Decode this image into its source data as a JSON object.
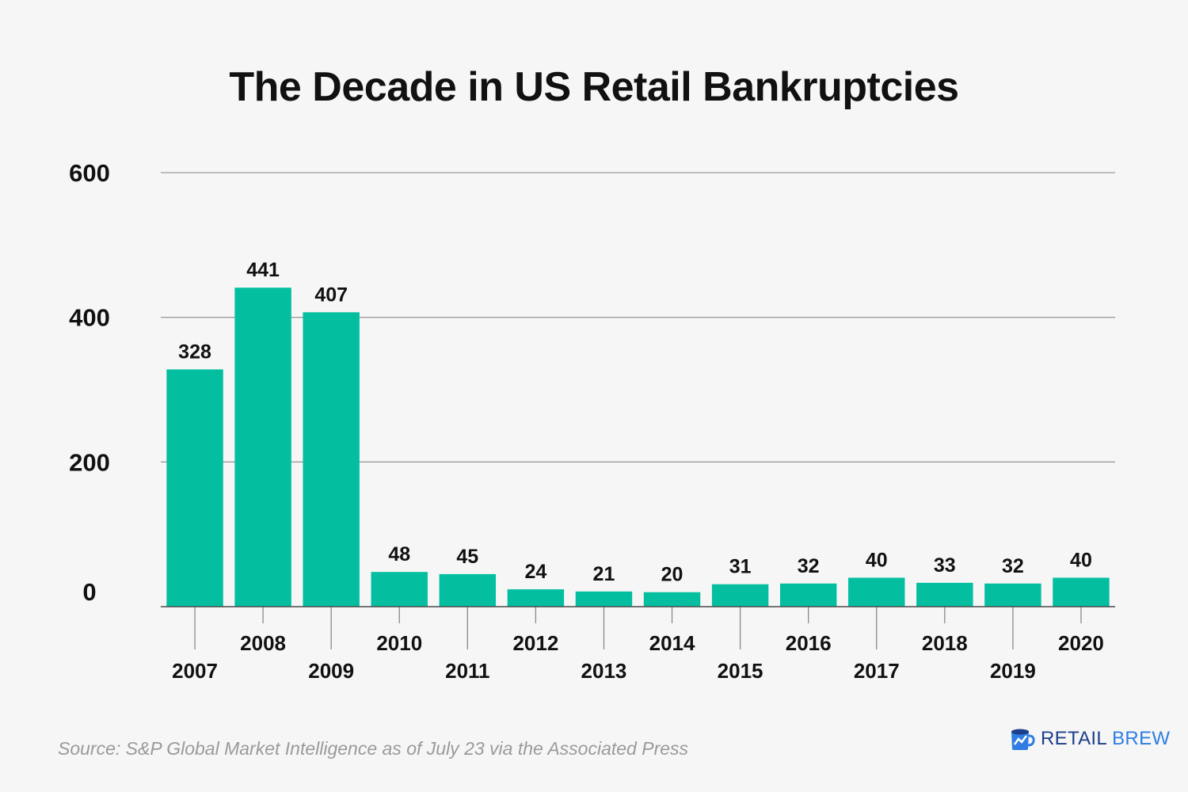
{
  "chart_data": {
    "type": "bar",
    "title": "The Decade in US Retail Bankruptcies",
    "categories": [
      "2007",
      "2008",
      "2009",
      "2010",
      "2011",
      "2012",
      "2013",
      "2014",
      "2015",
      "2016",
      "2017",
      "2018",
      "2019",
      "2020"
    ],
    "values": [
      328,
      441,
      407,
      48,
      45,
      24,
      21,
      20,
      31,
      32,
      40,
      33,
      32,
      40
    ],
    "value_labels": [
      "328",
      "441",
      "407",
      "48",
      "45",
      "24",
      "21",
      "20",
      "31",
      "32",
      "40",
      "33",
      "32",
      "40"
    ],
    "y_ticks": [
      "0",
      "200",
      "400",
      "600"
    ],
    "ylim": [
      0,
      600
    ],
    "grid": true,
    "legend": "none",
    "bar_color": "#03bfa0",
    "xlabel": "",
    "ylabel": ""
  },
  "source": "Source: S&P Global Market Intelligence as of July 23 via the Associated Press",
  "brand": {
    "name_part1": "RETAIL",
    "name_part2": "BREW",
    "icon": "retail-brew-logo-icon",
    "color_dark": "#1d3f8a",
    "color_light": "#2f7de1"
  }
}
